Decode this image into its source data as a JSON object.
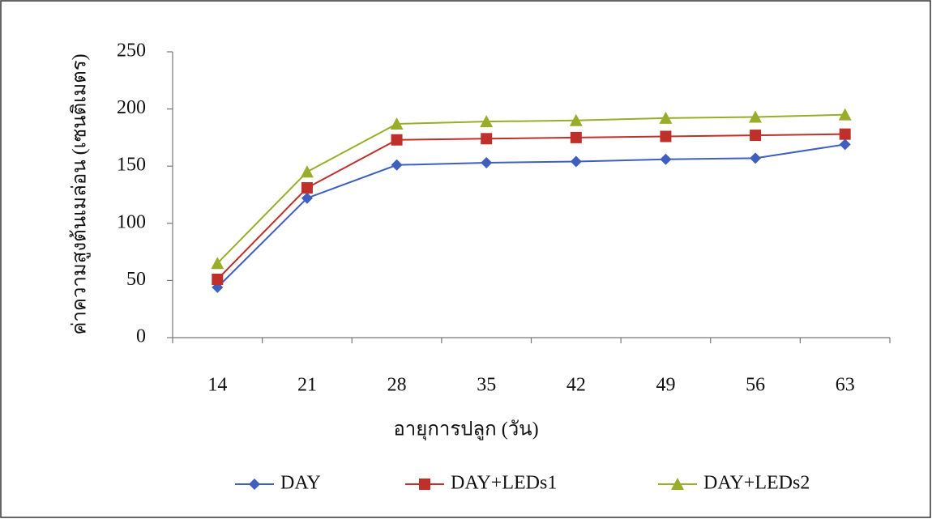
{
  "chart_data": {
    "type": "line",
    "y_label": "ค่าความสูงต้นเมล่อน (เซนติเมตร)",
    "x_label": "อายุการปลูก (วัน)",
    "categories": [
      "14",
      "21",
      "28",
      "35",
      "42",
      "49",
      "56",
      "63"
    ],
    "series": [
      {
        "name": "DAY",
        "color": "#3f5fbf",
        "marker": "diamond",
        "values": [
          44,
          122,
          151,
          153,
          154,
          156,
          157,
          169
        ]
      },
      {
        "name": "DAY+LEDs1",
        "color": "#c0302a",
        "marker": "square",
        "values": [
          51,
          131,
          173,
          174,
          175,
          176,
          177,
          178
        ]
      },
      {
        "name": "DAY+LEDs2",
        "color": "#9aad2a",
        "marker": "triangle",
        "values": [
          65,
          145,
          187,
          189,
          190,
          192,
          193,
          195
        ]
      }
    ],
    "ylim": [
      0,
      250
    ],
    "yticks": [
      0,
      50,
      100,
      150,
      200,
      250
    ],
    "grid": false,
    "legend": "bottom"
  }
}
